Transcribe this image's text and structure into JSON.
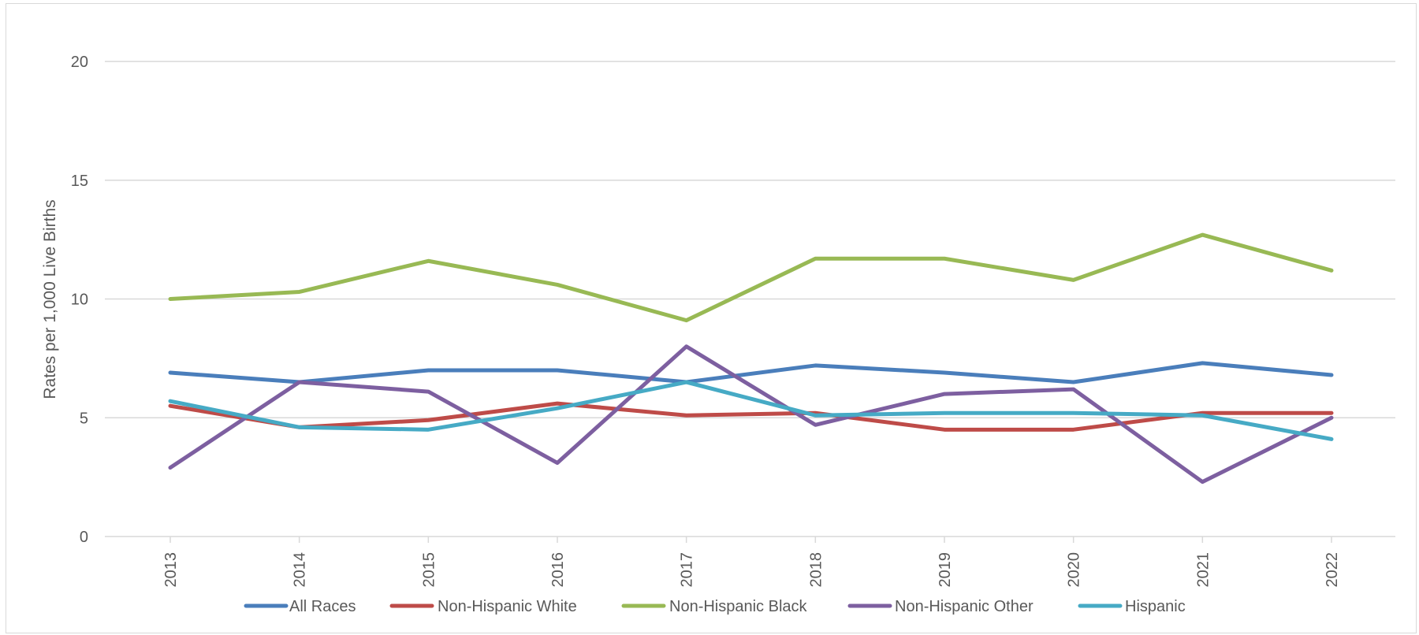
{
  "chart_data": {
    "type": "line",
    "title": "",
    "xlabel": "",
    "ylabel": "Rates per 1,000 Live Births",
    "ylim": [
      0,
      20
    ],
    "yticks": [
      0,
      5,
      10,
      15,
      20
    ],
    "grid": true,
    "legend_position": "bottom",
    "categories": [
      "2013",
      "2014",
      "2015",
      "2016",
      "2017",
      "2018",
      "2019",
      "2020",
      "2021",
      "2022"
    ],
    "series": [
      {
        "name": "All Races",
        "color": "#4a7ebb",
        "values": [
          6.9,
          6.5,
          7.0,
          7.0,
          6.5,
          7.2,
          6.9,
          6.5,
          7.3,
          6.8
        ]
      },
      {
        "name": "Non-Hispanic White",
        "color": "#be4b48",
        "values": [
          5.5,
          4.6,
          4.9,
          5.6,
          5.1,
          5.2,
          4.5,
          4.5,
          5.2,
          5.2
        ]
      },
      {
        "name": "Non-Hispanic Black",
        "color": "#98b954",
        "values": [
          10.0,
          10.3,
          11.6,
          10.6,
          9.1,
          11.7,
          11.7,
          10.8,
          12.7,
          11.2
        ]
      },
      {
        "name": "Non-Hispanic Other",
        "color": "#7d5fa0",
        "values": [
          2.9,
          6.5,
          6.1,
          3.1,
          8.0,
          4.7,
          6.0,
          6.2,
          2.3,
          5.0
        ]
      },
      {
        "name": "Hispanic",
        "color": "#46aac5",
        "values": [
          5.7,
          4.6,
          4.5,
          5.4,
          6.5,
          5.1,
          5.2,
          5.2,
          5.1,
          4.1
        ]
      }
    ]
  }
}
